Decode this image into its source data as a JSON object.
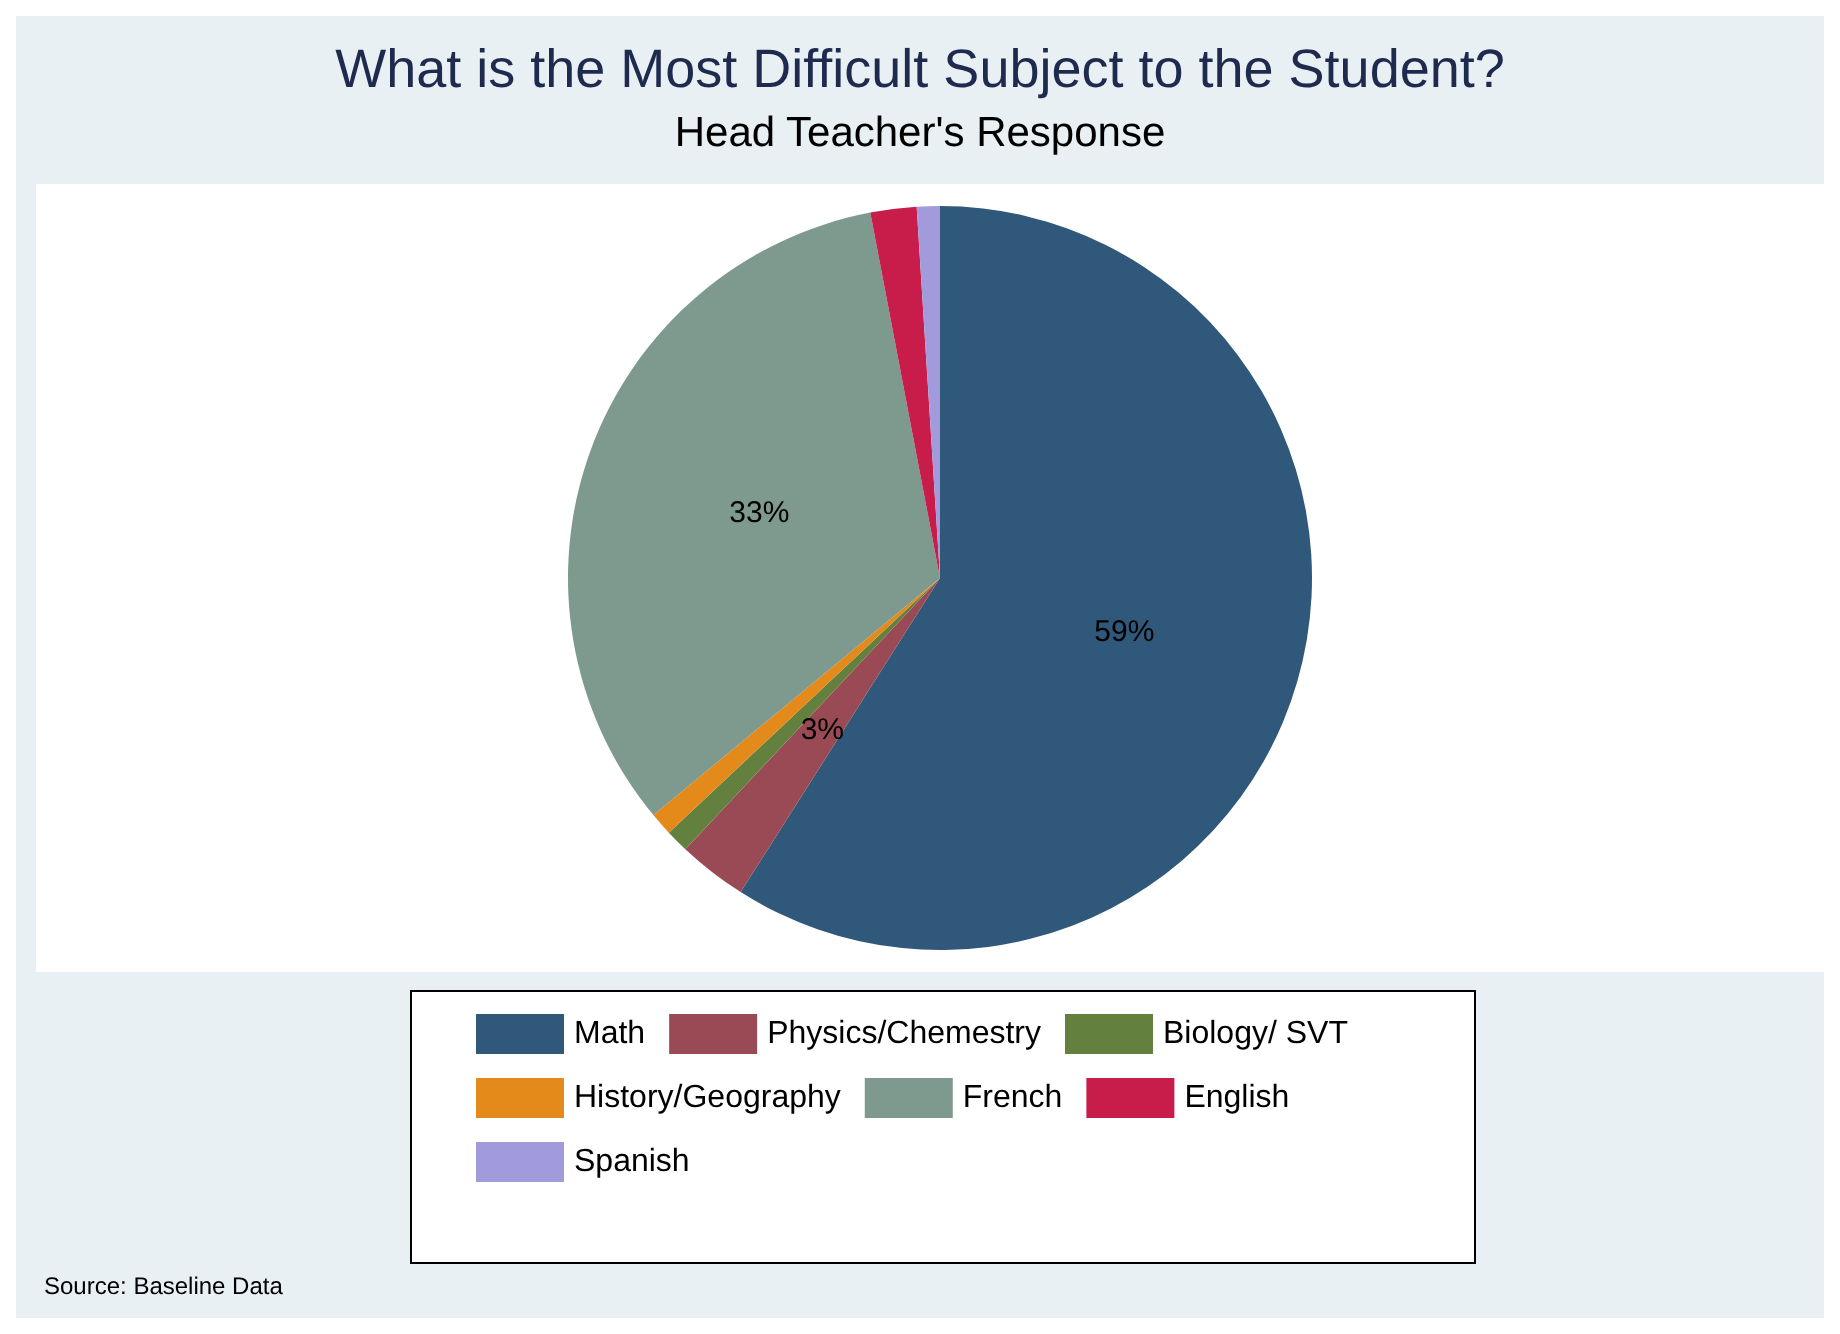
{
  "chart_data": {
    "type": "pie",
    "title": "What is the Most Difficult Subject to the Student?",
    "subtitle": "Head Teacher's Response",
    "categories": [
      "Math",
      "Physics/Chemestry",
      "Biology/ SVT",
      "History/Geography",
      "French",
      "English",
      "Spanish"
    ],
    "values": [
      59,
      3,
      1,
      1,
      33,
      2,
      1
    ],
    "value_labels": [
      "59%",
      "3%",
      null,
      null,
      "33%",
      null,
      null
    ],
    "colors": [
      "#30587a",
      "#9a4a55",
      "#64803f",
      "#e48a1b",
      "#7e998d",
      "#c81c4a",
      "#a29bdb"
    ],
    "legend": "bottom",
    "annotations": [
      "Source: Baseline Data"
    ]
  }
}
